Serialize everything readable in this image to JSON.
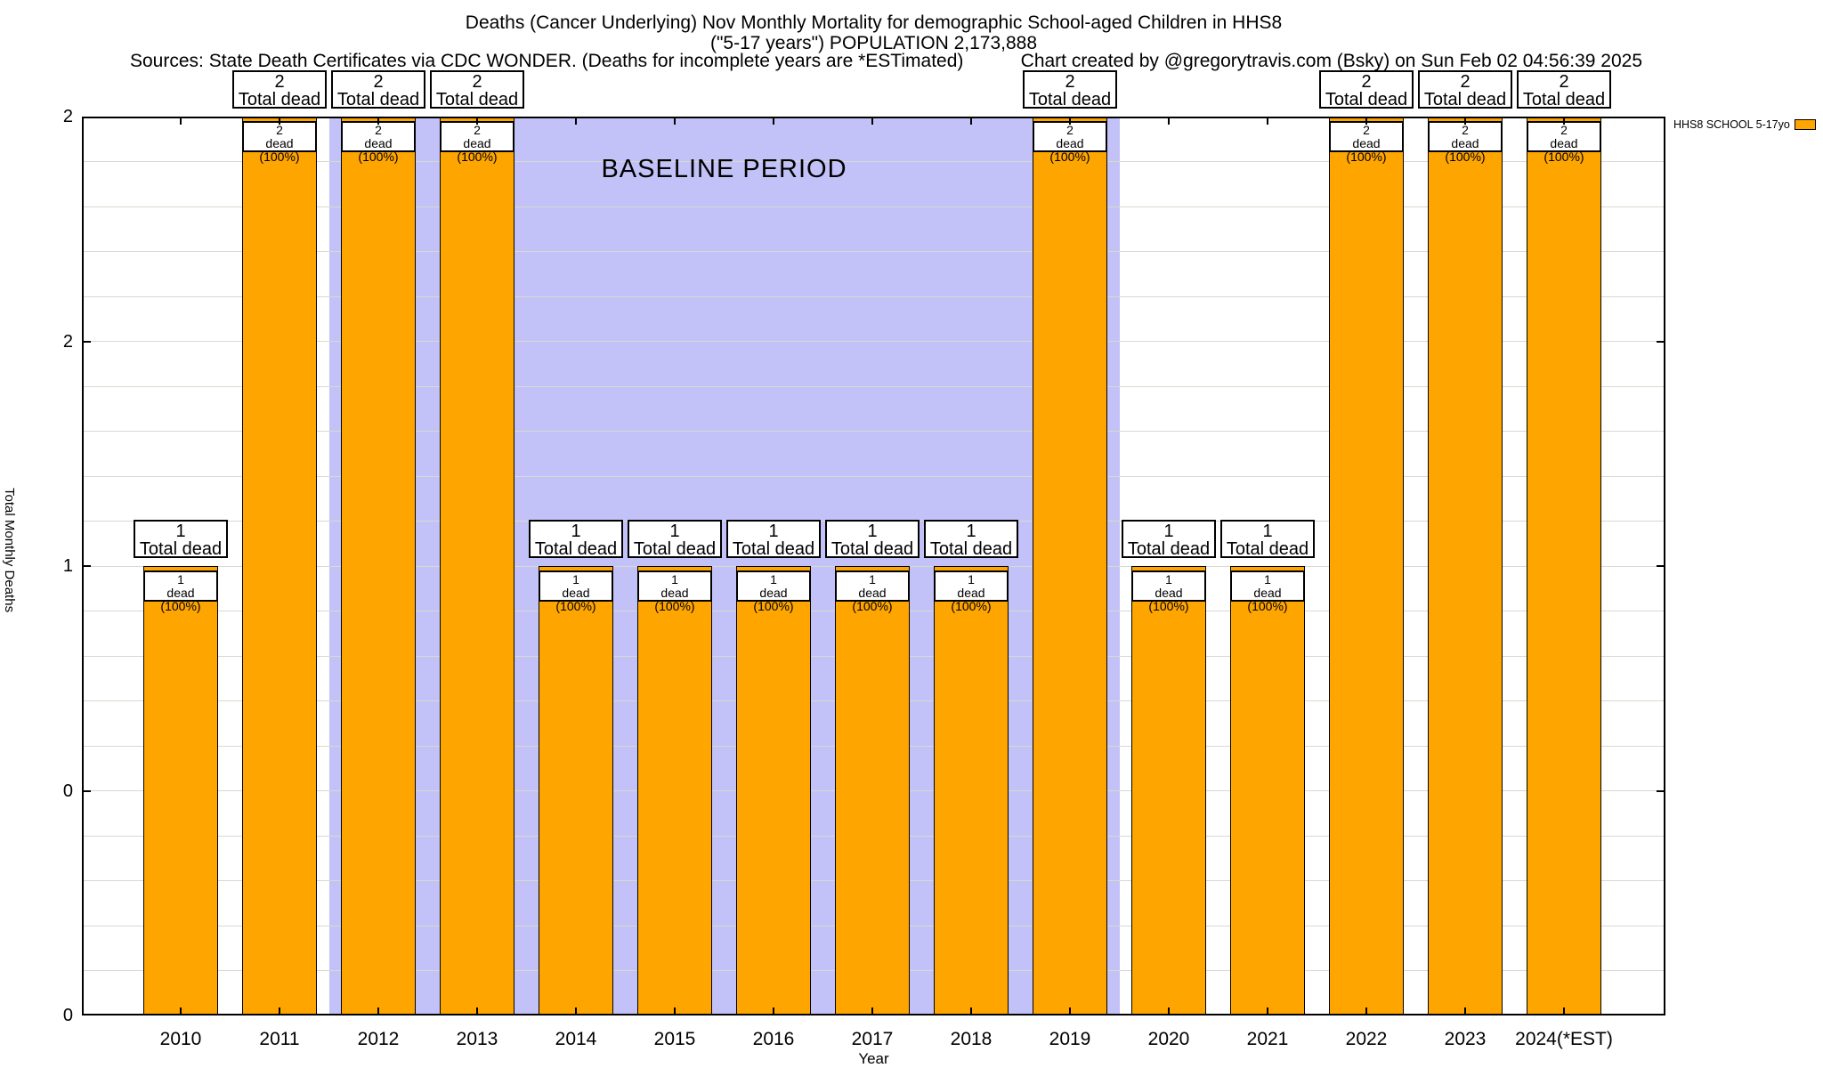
{
  "header": {
    "title_line1": "Deaths (Cancer Underlying) Nov Monthly Mortality for demographic School-aged Children in HHS8",
    "title_line2": "(\"5-17 years\") POPULATION 2,173,888",
    "sources": "Sources: State Death Certificates via CDC WONDER. (Deaths for incomplete years are *ESTimated)",
    "credit": "Chart created by @gregorytravis.com (Bsky) on Sun Feb 02 04:56:39 2025"
  },
  "chart_data": {
    "type": "bar",
    "title": "Deaths (Cancer Underlying) Nov Monthly Mortality for demographic School-aged Children in HHS8",
    "subtitle": "(\"5-17 years\") POPULATION 2,173,888",
    "categories": [
      "2010",
      "2011",
      "2012",
      "2013",
      "2014",
      "2015",
      "2016",
      "2017",
      "2018",
      "2019",
      "2020",
      "2021",
      "2022",
      "2023",
      "2024(*EST)"
    ],
    "values": [
      1,
      2,
      2,
      2,
      1,
      1,
      1,
      1,
      1,
      2,
      1,
      1,
      2,
      2,
      2
    ],
    "series_name": "HHS8 SCHOOL 5-17yo",
    "xlabel": "Year",
    "ylabel": "Total Monthly Deaths",
    "ylim": [
      0,
      2
    ],
    "yticks": [
      {
        "value": 0.0,
        "label": "0"
      },
      {
        "value": 0.5,
        "label": "0"
      },
      {
        "value": 1.0,
        "label": "1"
      },
      {
        "value": 1.5,
        "label": "2"
      },
      {
        "value": 2.0,
        "label": "2"
      }
    ],
    "minor_grid_step": 0.1,
    "grid": "horizontal minor gridlines on",
    "legend_position": "outside top-right",
    "bar_color": "#ffa500",
    "bar_border_color": "#000000",
    "annotations": {
      "total_label_suffix": "Total dead",
      "pct_label_suffix": "dead (100%)"
    },
    "baseline_band": {
      "label": "BASELINE PERIOD",
      "x_start_year": 2011.5,
      "x_end_year": 2019.5,
      "color": "#c2c2f8"
    }
  }
}
